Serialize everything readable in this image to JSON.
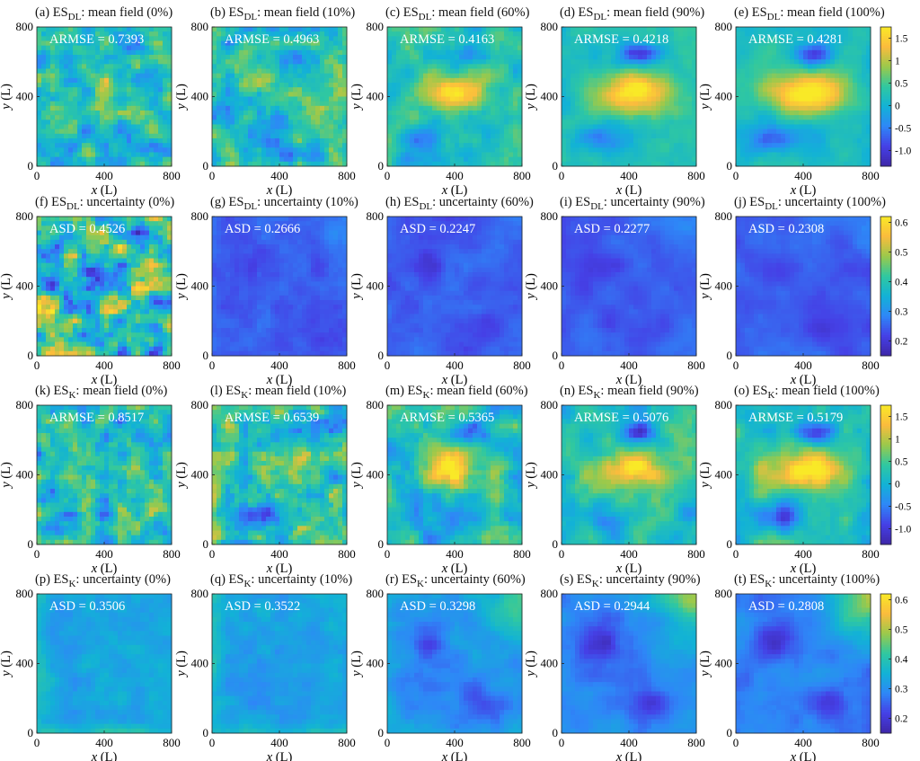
{
  "figure": {
    "axis_ticks": {
      "x": [
        "0",
        "400",
        "800"
      ],
      "y": [
        "0",
        "400",
        "800"
      ]
    },
    "colorbars": [
      {
        "ticks": [
          "1.5",
          "1",
          "0.5",
          "0",
          "-0.5",
          "-1.0"
        ],
        "range": [
          -1.35,
          1.75
        ]
      },
      {
        "ticks": [
          "0.6",
          "0.5",
          "0.4",
          "0.3",
          "0.2"
        ],
        "range": [
          0.15,
          0.62
        ]
      },
      {
        "ticks": [
          "1.5",
          "1",
          "0.5",
          "0",
          "-0.5",
          "-1.0"
        ],
        "range": [
          -1.35,
          1.75
        ]
      },
      {
        "ticks": [
          "0.6",
          "0.5",
          "0.4",
          "0.3",
          "0.2"
        ],
        "range": [
          0.15,
          0.62
        ]
      }
    ],
    "colormap": [
      "#3e26a8",
      "#4540e6",
      "#2e87f7",
      "#12b2d6",
      "#30c8a0",
      "#9bc94b",
      "#fbbc3d",
      "#f9e927"
    ]
  },
  "chart_data": [
    {
      "type": "heatmap",
      "label": "(a) ES",
      "method": "DL",
      "desc": "mean field (0%)",
      "metric": "ARMSE = 0.7393",
      "xlabel": "x",
      "ylabel": "y",
      "unit": " (L)",
      "xlim": [
        0,
        800
      ],
      "ylim": [
        0,
        800
      ],
      "kind": "mean",
      "ratio": 0
    },
    {
      "type": "heatmap",
      "label": "(b) ES",
      "method": "DL",
      "desc": "mean field (10%)",
      "metric": "ARMSE = 0.4963",
      "xlabel": "x",
      "ylabel": "y",
      "unit": " (L)",
      "xlim": [
        0,
        800
      ],
      "ylim": [
        0,
        800
      ],
      "kind": "mean",
      "ratio": 10
    },
    {
      "type": "heatmap",
      "label": "(c) ES",
      "method": "DL",
      "desc": "mean field (60%)",
      "metric": "ARMSE = 0.4163",
      "xlabel": "x",
      "ylabel": "y",
      "unit": " (L)",
      "xlim": [
        0,
        800
      ],
      "ylim": [
        0,
        800
      ],
      "kind": "mean",
      "ratio": 60
    },
    {
      "type": "heatmap",
      "label": "(d) ES",
      "method": "DL",
      "desc": "mean field (90%)",
      "metric": "ARMSE = 0.4218",
      "xlabel": "x",
      "ylabel": "y",
      "unit": " (L)",
      "xlim": [
        0,
        800
      ],
      "ylim": [
        0,
        800
      ],
      "kind": "mean",
      "ratio": 90
    },
    {
      "type": "heatmap",
      "label": "(e) ES",
      "method": "DL",
      "desc": "mean field (100%)",
      "metric": "ARMSE = 0.4281",
      "xlabel": "x",
      "ylabel": "y",
      "unit": " (L)",
      "xlim": [
        0,
        800
      ],
      "ylim": [
        0,
        800
      ],
      "kind": "mean",
      "ratio": 100
    },
    {
      "type": "heatmap",
      "label": "(f) ES",
      "method": "DL",
      "desc": "uncertainty (0%)",
      "metric": "ASD = 0.4526",
      "xlabel": "x",
      "ylabel": "y",
      "unit": " (L)",
      "xlim": [
        0,
        800
      ],
      "ylim": [
        0,
        800
      ],
      "kind": "unc",
      "ratio": 0
    },
    {
      "type": "heatmap",
      "label": "(g) ES",
      "method": "DL",
      "desc": "uncertainty (10%)",
      "metric": "ASD = 0.2666",
      "xlabel": "x",
      "ylabel": "y",
      "unit": " (L)",
      "xlim": [
        0,
        800
      ],
      "ylim": [
        0,
        800
      ],
      "kind": "unc",
      "ratio": 10
    },
    {
      "type": "heatmap",
      "label": "(h) ES",
      "method": "DL",
      "desc": "uncertainty (60%)",
      "metric": "ASD = 0.2247",
      "xlabel": "x",
      "ylabel": "y",
      "unit": " (L)",
      "xlim": [
        0,
        800
      ],
      "ylim": [
        0,
        800
      ],
      "kind": "unc",
      "ratio": 60
    },
    {
      "type": "heatmap",
      "label": "(i) ES",
      "method": "DL",
      "desc": "uncertainty (90%)",
      "metric": "ASD = 0.2277",
      "xlabel": "x",
      "ylabel": "y",
      "unit": " (L)",
      "xlim": [
        0,
        800
      ],
      "ylim": [
        0,
        800
      ],
      "kind": "unc",
      "ratio": 90
    },
    {
      "type": "heatmap",
      "label": "(j) ES",
      "method": "DL",
      "desc": "uncertainty (100%)",
      "metric": "ASD = 0.2308",
      "xlabel": "x",
      "ylabel": "y",
      "unit": " (L)",
      "xlim": [
        0,
        800
      ],
      "ylim": [
        0,
        800
      ],
      "kind": "unc",
      "ratio": 100
    },
    {
      "type": "heatmap",
      "label": "(k) ES",
      "method": "K",
      "desc": "mean field (0%)",
      "metric": "ARMSE = 0.8517",
      "xlabel": "x",
      "ylabel": "y",
      "unit": " (L)",
      "xlim": [
        0,
        800
      ],
      "ylim": [
        0,
        800
      ],
      "kind": "mean",
      "ratio": 0
    },
    {
      "type": "heatmap",
      "label": "(l) ES",
      "method": "K",
      "desc": "mean field (10%)",
      "metric": "ARMSE = 0.6539",
      "xlabel": "x",
      "ylabel": "y",
      "unit": " (L)",
      "xlim": [
        0,
        800
      ],
      "ylim": [
        0,
        800
      ],
      "kind": "mean",
      "ratio": 10
    },
    {
      "type": "heatmap",
      "label": "(m) ES",
      "method": "K",
      "desc": "mean field (60%)",
      "metric": "ARMSE = 0.5365",
      "xlabel": "x",
      "ylabel": "y",
      "unit": " (L)",
      "xlim": [
        0,
        800
      ],
      "ylim": [
        0,
        800
      ],
      "kind": "mean",
      "ratio": 60
    },
    {
      "type": "heatmap",
      "label": "(n) ES",
      "method": "K",
      "desc": "mean field (90%)",
      "metric": "ARMSE = 0.5076",
      "xlabel": "x",
      "ylabel": "y",
      "unit": " (L)",
      "xlim": [
        0,
        800
      ],
      "ylim": [
        0,
        800
      ],
      "kind": "mean",
      "ratio": 90
    },
    {
      "type": "heatmap",
      "label": "(o) ES",
      "method": "K",
      "desc": "mean field (100%)",
      "metric": "ARMSE = 0.5179",
      "xlabel": "x",
      "ylabel": "y",
      "unit": " (L)",
      "xlim": [
        0,
        800
      ],
      "ylim": [
        0,
        800
      ],
      "kind": "mean",
      "ratio": 100
    },
    {
      "type": "heatmap",
      "label": "(p) ES",
      "method": "K",
      "desc": "uncertainty (0%)",
      "metric": "ASD = 0.3506",
      "xlabel": "x",
      "ylabel": "y",
      "unit": " (L)",
      "xlim": [
        0,
        800
      ],
      "ylim": [
        0,
        800
      ],
      "kind": "unc",
      "ratio": 0
    },
    {
      "type": "heatmap",
      "label": "(q) ES",
      "method": "K",
      "desc": "uncertainty (10%)",
      "metric": "ASD = 0.3522",
      "xlabel": "x",
      "ylabel": "y",
      "unit": " (L)",
      "xlim": [
        0,
        800
      ],
      "ylim": [
        0,
        800
      ],
      "kind": "unc",
      "ratio": 10
    },
    {
      "type": "heatmap",
      "label": "(r) ES",
      "method": "K",
      "desc": "uncertainty (60%)",
      "metric": "ASD = 0.3298",
      "xlabel": "x",
      "ylabel": "y",
      "unit": " (L)",
      "xlim": [
        0,
        800
      ],
      "ylim": [
        0,
        800
      ],
      "kind": "unc",
      "ratio": 60
    },
    {
      "type": "heatmap",
      "label": "(s) ES",
      "method": "K",
      "desc": "uncertainty (90%)",
      "metric": "ASD = 0.2944",
      "xlabel": "x",
      "ylabel": "y",
      "unit": " (L)",
      "xlim": [
        0,
        800
      ],
      "ylim": [
        0,
        800
      ],
      "kind": "unc",
      "ratio": 90
    },
    {
      "type": "heatmap",
      "label": "(t) ES",
      "method": "K",
      "desc": "uncertainty (100%)",
      "metric": "ASD = 0.2808",
      "xlabel": "x",
      "ylabel": "y",
      "unit": " (L)",
      "xlim": [
        0,
        800
      ],
      "ylim": [
        0,
        800
      ],
      "kind": "unc",
      "ratio": 100
    }
  ]
}
